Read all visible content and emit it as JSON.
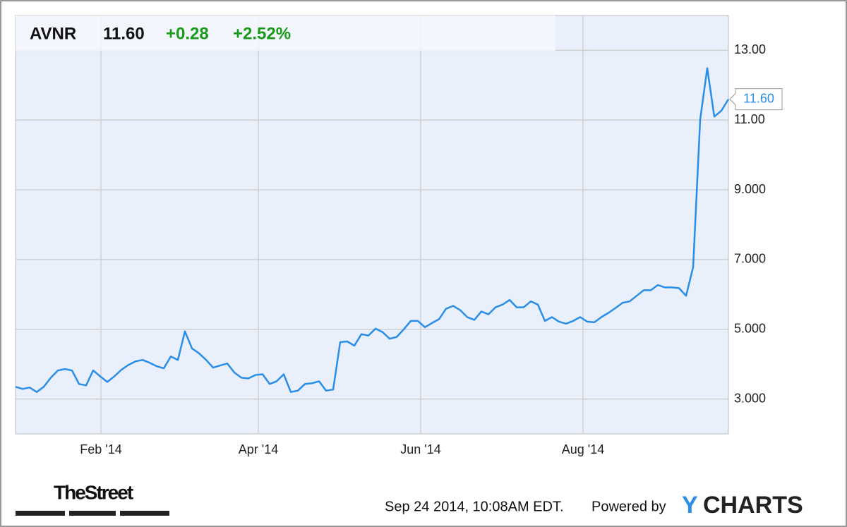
{
  "chart_data": {
    "type": "line",
    "ticker": "AVNR",
    "price": "11.60",
    "change": "+0.28",
    "change_pct": "+2.52%",
    "xlim": [
      0,
      101
    ],
    "xticks": [
      {
        "value": 12.1,
        "label": "Feb '14"
      },
      {
        "value": 34.4,
        "label": "Apr '14"
      },
      {
        "value": 57.4,
        "label": "Jun '14"
      },
      {
        "value": 80.4,
        "label": "Aug '14"
      }
    ],
    "ylim": [
      2,
      14
    ],
    "yticks": [
      {
        "value": 3,
        "label": "3.000"
      },
      {
        "value": 5,
        "label": "5.000"
      },
      {
        "value": 7,
        "label": "7.000"
      },
      {
        "value": 9,
        "label": "9.000"
      },
      {
        "value": 11,
        "label": "11.00"
      },
      {
        "value": 13,
        "label": "13.00"
      }
    ],
    "grid": true,
    "color": "#2a8ee8",
    "values": [
      3.35,
      3.29,
      3.33,
      3.2,
      3.35,
      3.61,
      3.82,
      3.86,
      3.82,
      3.43,
      3.39,
      3.82,
      3.65,
      3.49,
      3.65,
      3.84,
      3.98,
      4.08,
      4.12,
      4.04,
      3.94,
      3.88,
      4.22,
      4.12,
      4.94,
      4.45,
      4.31,
      4.12,
      3.9,
      3.96,
      4.02,
      3.76,
      3.61,
      3.59,
      3.69,
      3.71,
      3.43,
      3.51,
      3.71,
      3.2,
      3.24,
      3.43,
      3.45,
      3.51,
      3.24,
      3.27,
      4.63,
      4.65,
      4.53,
      4.86,
      4.82,
      5.02,
      4.92,
      4.73,
      4.78,
      5.0,
      5.24,
      5.24,
      5.06,
      5.18,
      5.29,
      5.59,
      5.67,
      5.55,
      5.35,
      5.27,
      5.51,
      5.43,
      5.63,
      5.71,
      5.84,
      5.63,
      5.63,
      5.8,
      5.71,
      5.24,
      5.35,
      5.22,
      5.16,
      5.24,
      5.35,
      5.22,
      5.2,
      5.35,
      5.47,
      5.61,
      5.76,
      5.8,
      5.96,
      6.12,
      6.12,
      6.27,
      6.2,
      6.2,
      6.18,
      5.96,
      6.78,
      11.02,
      12.49,
      11.1,
      11.27,
      11.6
    ],
    "footer": {
      "source": "TheStreet",
      "timestamp": "Sep 24 2014, 10:08AM EDT.",
      "powered_by": "Powered by",
      "logo_first": "Y",
      "logo_rest": "CHARTS"
    }
  }
}
